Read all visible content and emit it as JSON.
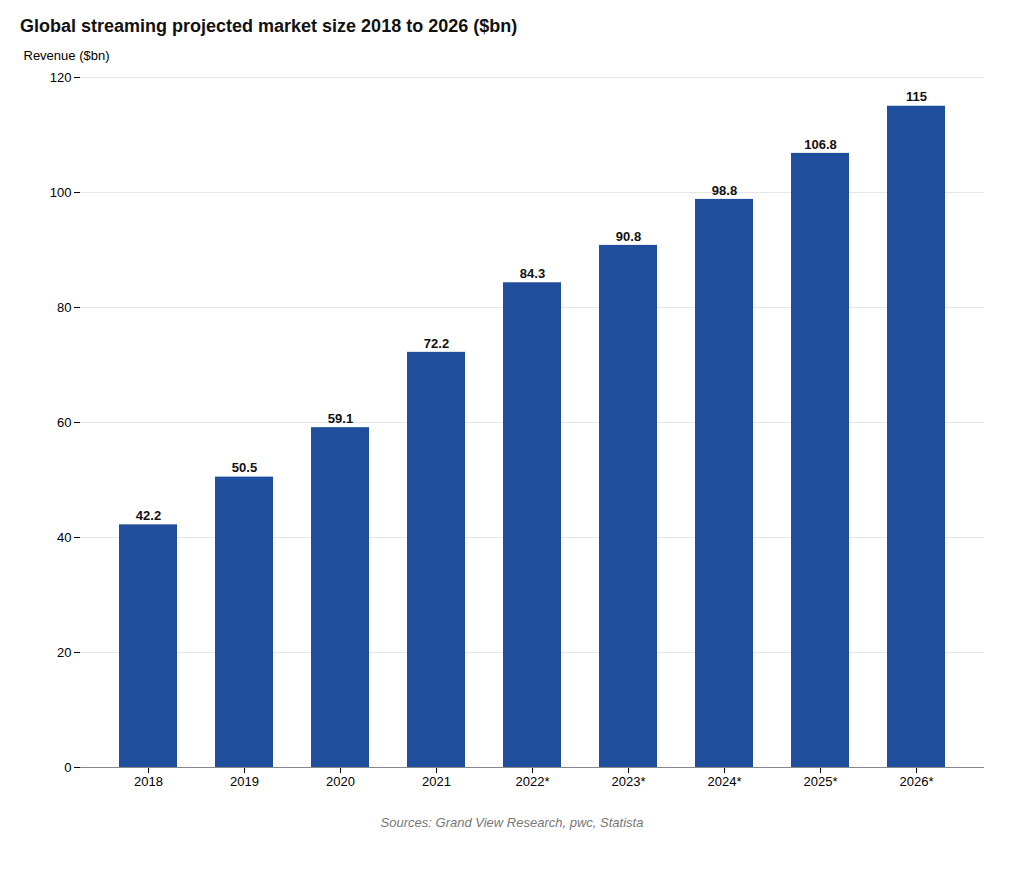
{
  "chart_data": {
    "type": "bar",
    "title": "Global streaming projected market size 2018 to 2026 ($bn)",
    "categories": [
      "2018",
      "2019",
      "2020",
      "2021",
      "2022*",
      "2023*",
      "2024*",
      "2025*",
      "2026*"
    ],
    "values": [
      42.2,
      50.5,
      59.1,
      72.2,
      84.3,
      90.8,
      98.8,
      106.8,
      115
    ],
    "color": "#1F4E9C",
    "ylabel": "Revenue ($bn)",
    "ylim": [
      0,
      120
    ],
    "yticks": [
      0,
      20,
      40,
      60,
      80,
      100,
      120
    ],
    "grid": true,
    "data_labels": true,
    "caption": "Sources: Grand View Research, pwc, Statista"
  }
}
